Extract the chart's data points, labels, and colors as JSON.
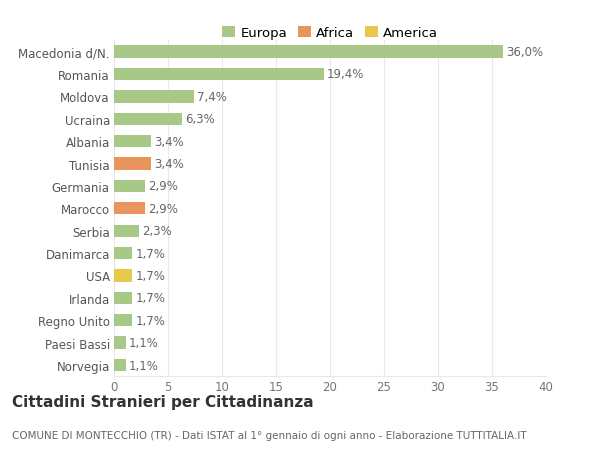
{
  "categories": [
    "Norvegia",
    "Paesi Bassi",
    "Regno Unito",
    "Irlanda",
    "USA",
    "Danimarca",
    "Serbia",
    "Marocco",
    "Germania",
    "Tunisia",
    "Albania",
    "Ucraina",
    "Moldova",
    "Romania",
    "Macedonia d/N."
  ],
  "values": [
    1.1,
    1.1,
    1.7,
    1.7,
    1.7,
    1.7,
    2.3,
    2.9,
    2.9,
    3.4,
    3.4,
    6.3,
    7.4,
    19.4,
    36.0
  ],
  "labels": [
    "1,1%",
    "1,1%",
    "1,7%",
    "1,7%",
    "1,7%",
    "1,7%",
    "2,3%",
    "2,9%",
    "2,9%",
    "3,4%",
    "3,4%",
    "6,3%",
    "7,4%",
    "19,4%",
    "36,0%"
  ],
  "colors": [
    "#a8c887",
    "#a8c887",
    "#a8c887",
    "#a8c887",
    "#e8c84a",
    "#a8c887",
    "#a8c887",
    "#e8945a",
    "#a8c887",
    "#e8945a",
    "#a8c887",
    "#a8c887",
    "#a8c887",
    "#a8c887",
    "#a8c887"
  ],
  "legend_labels": [
    "Europa",
    "Africa",
    "America"
  ],
  "legend_colors": [
    "#a8c887",
    "#e8945a",
    "#e8c84a"
  ],
  "title": "Cittadini Stranieri per Cittadinanza",
  "subtitle": "COMUNE DI MONTECCHIO (TR) - Dati ISTAT al 1° gennaio di ogni anno - Elaborazione TUTTITALIA.IT",
  "xlim": [
    0,
    40
  ],
  "xticks": [
    0,
    5,
    10,
    15,
    20,
    25,
    30,
    35,
    40
  ],
  "bg_color": "#ffffff",
  "grid_color": "#e8e8e8",
  "bar_height": 0.55,
  "title_fontsize": 11,
  "subtitle_fontsize": 7.5,
  "tick_fontsize": 8.5,
  "label_fontsize": 8.5,
  "legend_fontsize": 9.5
}
